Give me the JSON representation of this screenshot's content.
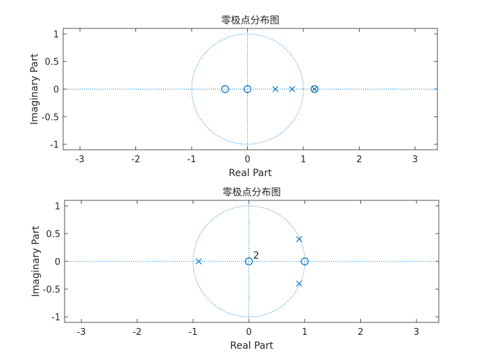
{
  "chart_data": [
    {
      "type": "scatter",
      "title": "零极点分布图",
      "xlabel": "Real Part",
      "ylabel": "Imaginary Part",
      "xlim": [
        -3.3,
        3.4
      ],
      "ylim": [
        -1.1,
        1.1
      ],
      "xticks": [
        "-3",
        "-2",
        "-1",
        "0",
        "1",
        "2",
        "3"
      ],
      "yticks": [
        "1",
        "0.5",
        "0",
        "-0.5",
        "-1"
      ],
      "unit_circle": true,
      "zeros": [
        {
          "x": -0.4,
          "y": 0
        },
        {
          "x": 0,
          "y": 0
        },
        {
          "x": 1.2,
          "y": 0
        }
      ],
      "poles": [
        {
          "x": 0.5,
          "y": 0
        },
        {
          "x": 0.8,
          "y": 0
        },
        {
          "x": 1.2,
          "y": 0
        }
      ],
      "multiplicity_labels": []
    },
    {
      "type": "scatter",
      "title": "零极点分布图",
      "xlabel": "Real Part",
      "ylabel": "Imaginary Part",
      "xlim": [
        -3.3,
        3.4
      ],
      "ylim": [
        -1.1,
        1.1
      ],
      "xticks": [
        "-3",
        "-2",
        "-1",
        "0",
        "1",
        "2",
        "3"
      ],
      "yticks": [
        "1",
        "0.5",
        "0",
        "-0.5",
        "-1"
      ],
      "unit_circle": true,
      "zeros": [
        {
          "x": 0,
          "y": 0
        },
        {
          "x": 1,
          "y": 0
        }
      ],
      "poles": [
        {
          "x": -0.9,
          "y": 0
        },
        {
          "x": 0.9,
          "y": 0.4
        },
        {
          "x": 0.9,
          "y": -0.4
        }
      ],
      "multiplicity_labels": [
        {
          "x": 0,
          "y": 0,
          "text": "2"
        }
      ]
    }
  ],
  "colors": {
    "marker": "#0072BD",
    "axis_line": "#262626",
    "background": "#ffffff"
  }
}
